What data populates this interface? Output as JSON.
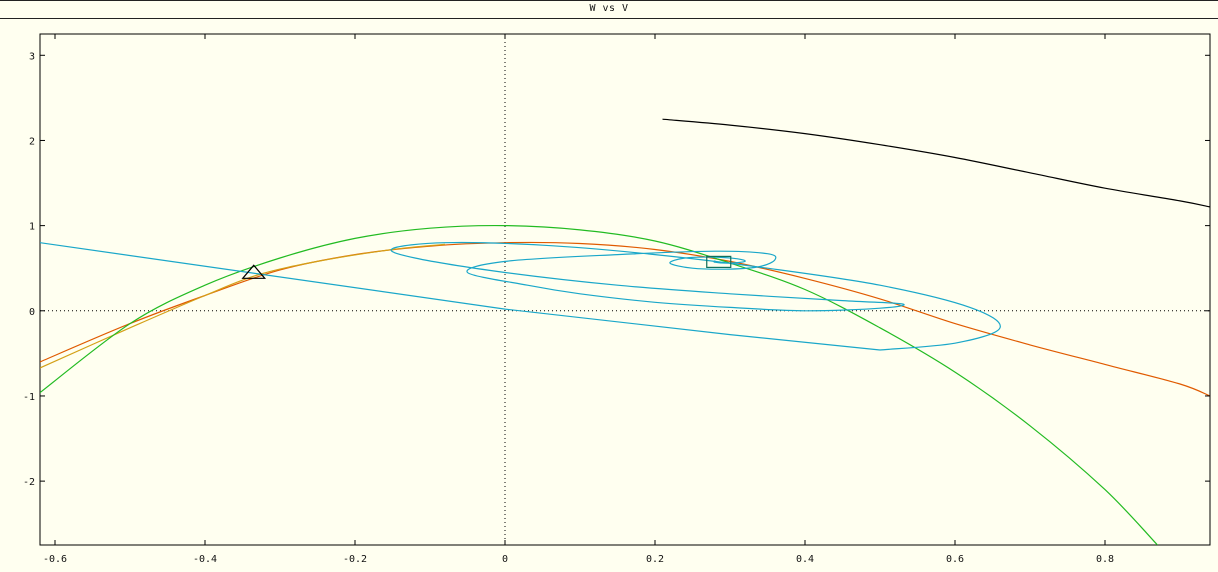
{
  "window": {
    "title": "W vs V"
  },
  "colors": {
    "background": "#fffff0",
    "axis": "#000000",
    "black_curve": "#000000",
    "cyan_curve": "#1aa7c9",
    "orange_curve": "#e05a00",
    "yellow_curve": "#d4a017",
    "green_curve": "#22bb22",
    "green_light_curve": "#44cc44",
    "teal_marker": "#0f6e5a"
  },
  "chart_data": {
    "type": "line",
    "title": "W vs V",
    "xlabel": "",
    "ylabel": "",
    "xlim": [
      -0.62,
      0.94
    ],
    "ylim": [
      -2.75,
      3.25
    ],
    "grid": false,
    "x_ticks": [
      "-0.6",
      "-0.4",
      "-0.2",
      "0",
      "0.2",
      "0.4",
      "0.6",
      "0.8"
    ],
    "x_tick_values": [
      -0.6,
      -0.4,
      -0.2,
      0,
      0.2,
      0.4,
      0.6,
      0.8
    ],
    "y_ticks": [
      "3",
      "2",
      "1",
      "0",
      "-1",
      "-2"
    ],
    "y_tick_values": [
      3,
      2,
      1,
      0,
      -1,
      -2
    ],
    "zero_lines": {
      "x": 0,
      "y": 0
    },
    "series": [
      {
        "color": "black",
        "kind": "line",
        "points": [
          [
            0.21,
            2.25
          ],
          [
            0.3,
            2.18
          ],
          [
            0.4,
            2.08
          ],
          [
            0.5,
            1.95
          ],
          [
            0.6,
            1.8
          ],
          [
            0.7,
            1.62
          ],
          [
            0.8,
            1.44
          ],
          [
            0.9,
            1.29
          ],
          [
            0.94,
            1.22
          ]
        ]
      },
      {
        "color": "orange",
        "kind": "nullcline",
        "points": [
          [
            -0.62,
            -0.6
          ],
          [
            -0.5,
            -0.15
          ],
          [
            -0.4,
            0.18
          ],
          [
            -0.3,
            0.48
          ],
          [
            -0.2,
            0.66
          ],
          [
            -0.1,
            0.76
          ],
          [
            0.0,
            0.8
          ],
          [
            0.1,
            0.79
          ],
          [
            0.2,
            0.72
          ],
          [
            0.3,
            0.58
          ],
          [
            0.4,
            0.38
          ],
          [
            0.5,
            0.14
          ],
          [
            0.6,
            -0.15
          ],
          [
            0.7,
            -0.4
          ],
          [
            0.8,
            -0.63
          ],
          [
            0.9,
            -0.86
          ],
          [
            0.94,
            -1.0
          ]
        ]
      },
      {
        "color": "yellow",
        "kind": "nullcline",
        "points": [
          [
            -0.62,
            -0.67
          ],
          [
            -0.5,
            -0.2
          ],
          [
            -0.4,
            0.18
          ],
          [
            -0.33,
            0.42
          ],
          [
            -0.25,
            0.58
          ],
          [
            -0.15,
            0.72
          ],
          [
            -0.08,
            0.78
          ]
        ]
      },
      {
        "color": "green",
        "kind": "parabola",
        "points": [
          [
            -0.62,
            -0.96
          ],
          [
            -0.5,
            -0.15
          ],
          [
            -0.4,
            0.3
          ],
          [
            -0.3,
            0.62
          ],
          [
            -0.2,
            0.85
          ],
          [
            -0.1,
            0.97
          ],
          [
            0.0,
            1.0
          ],
          [
            0.1,
            0.95
          ],
          [
            0.2,
            0.82
          ],
          [
            0.3,
            0.56
          ],
          [
            0.4,
            0.25
          ],
          [
            0.5,
            -0.2
          ],
          [
            0.6,
            -0.72
          ],
          [
            0.7,
            -1.35
          ],
          [
            0.8,
            -2.1
          ],
          [
            0.87,
            -2.75
          ]
        ]
      },
      {
        "color": "cyan",
        "kind": "straight",
        "points": [
          [
            -0.62,
            0.8
          ],
          [
            0.0,
            0.02
          ],
          [
            0.3,
            -0.28
          ],
          [
            0.5,
            -0.46
          ]
        ]
      },
      {
        "color": "cyan",
        "kind": "spiral",
        "points": [
          [
            0.5,
            -0.46
          ],
          [
            0.6,
            -0.38
          ],
          [
            0.66,
            -0.2
          ],
          [
            0.62,
            0.04
          ],
          [
            0.5,
            0.3
          ],
          [
            0.35,
            0.5
          ],
          [
            0.2,
            0.66
          ],
          [
            0.05,
            0.77
          ],
          [
            -0.08,
            0.8
          ],
          [
            -0.15,
            0.73
          ],
          [
            -0.12,
            0.62
          ],
          [
            0.0,
            0.45
          ],
          [
            0.15,
            0.3
          ],
          [
            0.3,
            0.2
          ],
          [
            0.45,
            0.12
          ],
          [
            0.53,
            0.08
          ],
          [
            0.5,
            0.03
          ],
          [
            0.4,
            0.0
          ],
          [
            0.3,
            0.04
          ],
          [
            0.2,
            0.1
          ],
          [
            0.1,
            0.2
          ],
          [
            0.03,
            0.3
          ],
          [
            -0.05,
            0.45
          ],
          [
            0.0,
            0.58
          ],
          [
            0.15,
            0.66
          ],
          [
            0.28,
            0.7
          ],
          [
            0.35,
            0.67
          ],
          [
            0.36,
            0.6
          ],
          [
            0.34,
            0.52
          ],
          [
            0.3,
            0.49
          ],
          [
            0.25,
            0.5
          ],
          [
            0.22,
            0.56
          ],
          [
            0.24,
            0.62
          ],
          [
            0.28,
            0.63
          ],
          [
            0.31,
            0.61
          ],
          [
            0.32,
            0.58
          ],
          [
            0.3,
            0.56
          ],
          [
            0.28,
            0.57
          ],
          [
            0.28,
            0.59
          ]
        ]
      }
    ],
    "markers": [
      {
        "shape": "triangle",
        "x": -0.335,
        "y": 0.44
      },
      {
        "shape": "square",
        "x": 0.285,
        "y": 0.58
      }
    ]
  }
}
